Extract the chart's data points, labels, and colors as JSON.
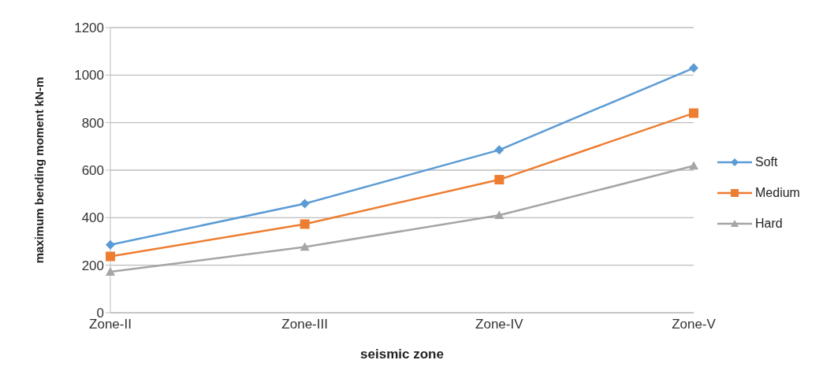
{
  "chart_data": {
    "type": "line",
    "xlabel": "seismic zone",
    "ylabel": "maximum bending moment kN-m",
    "categories": [
      "Zone-II",
      "Zone-III",
      "Zone-IV",
      "Zone-V"
    ],
    "series": [
      {
        "name": "Soft",
        "color": "#5b9bd5",
        "marker": "diamond",
        "values": [
          286,
          459,
          685,
          1030
        ]
      },
      {
        "name": "Medium",
        "color": "#ed7d31",
        "marker": "square",
        "values": [
          237,
          373,
          560,
          840
        ]
      },
      {
        "name": "Hard",
        "color": "#a5a5a5",
        "marker": "triangle",
        "values": [
          172,
          277,
          410,
          618
        ]
      }
    ],
    "ylim": [
      0,
      1200
    ],
    "yticks": [
      0,
      200,
      400,
      600,
      800,
      1000,
      1200
    ],
    "grid": "y",
    "legend": "right",
    "line_style": "solid"
  }
}
